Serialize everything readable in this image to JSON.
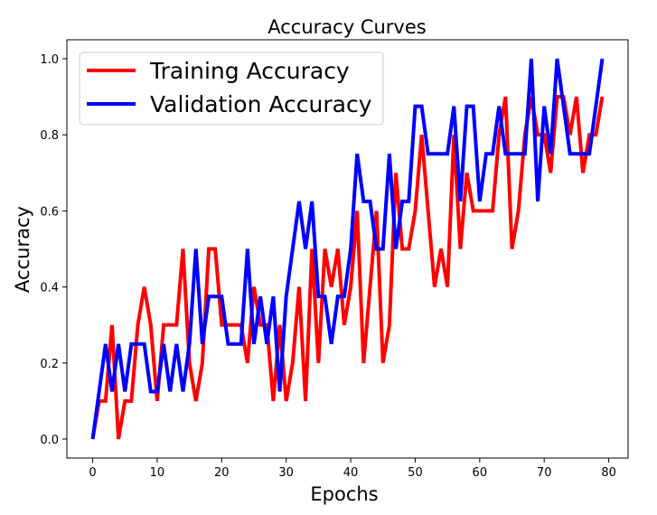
{
  "chart_data": {
    "type": "line",
    "title": "Accuracy Curves",
    "xlabel": "Epochs",
    "ylabel": "Accuracy",
    "xlim": [
      -4,
      83
    ],
    "ylim": [
      -0.05,
      1.05
    ],
    "xticks": [
      0,
      10,
      20,
      30,
      40,
      50,
      60,
      70,
      80
    ],
    "yticks": [
      0.0,
      0.2,
      0.4,
      0.6,
      0.8,
      1.0
    ],
    "grid": false,
    "legend_position": "top-left",
    "x": [
      0,
      1,
      2,
      3,
      4,
      5,
      6,
      7,
      8,
      9,
      10,
      11,
      12,
      13,
      14,
      15,
      16,
      17,
      18,
      19,
      20,
      21,
      22,
      23,
      24,
      25,
      26,
      27,
      28,
      29,
      30,
      31,
      32,
      33,
      34,
      35,
      36,
      37,
      38,
      39,
      40,
      41,
      42,
      43,
      44,
      45,
      46,
      47,
      48,
      49,
      50,
      51,
      52,
      53,
      54,
      55,
      56,
      57,
      58,
      59,
      60,
      61,
      62,
      63,
      64,
      65,
      66,
      67,
      68,
      69,
      70,
      71,
      72,
      73,
      74,
      75,
      76,
      77,
      78,
      79
    ],
    "series": [
      {
        "name": "Training Accuracy",
        "color": "#ff0000",
        "values": [
          0.0,
          0.1,
          0.1,
          0.3,
          0.0,
          0.1,
          0.1,
          0.3,
          0.4,
          0.3,
          0.1,
          0.3,
          0.3,
          0.3,
          0.5,
          0.2,
          0.1,
          0.2,
          0.5,
          0.5,
          0.3,
          0.3,
          0.3,
          0.3,
          0.2,
          0.4,
          0.3,
          0.3,
          0.1,
          0.3,
          0.1,
          0.2,
          0.4,
          0.1,
          0.5,
          0.2,
          0.5,
          0.4,
          0.5,
          0.3,
          0.4,
          0.6,
          0.2,
          0.4,
          0.6,
          0.2,
          0.3,
          0.7,
          0.5,
          0.5,
          0.6,
          0.8,
          0.6,
          0.4,
          0.5,
          0.4,
          0.8,
          0.5,
          0.7,
          0.6,
          0.6,
          0.6,
          0.6,
          0.8,
          0.9,
          0.5,
          0.6,
          0.8,
          0.9,
          0.8,
          0.8,
          0.7,
          0.9,
          0.9,
          0.8,
          0.9,
          0.7,
          0.8,
          0.8,
          0.9
        ]
      },
      {
        "name": "Validation Accuracy",
        "color": "#0000ff",
        "values": [
          0.0,
          0.125,
          0.25,
          0.125,
          0.25,
          0.125,
          0.25,
          0.25,
          0.25,
          0.125,
          0.125,
          0.25,
          0.125,
          0.25,
          0.125,
          0.25,
          0.5,
          0.25,
          0.375,
          0.375,
          0.375,
          0.25,
          0.25,
          0.25,
          0.5,
          0.25,
          0.375,
          0.25,
          0.375,
          0.125,
          0.375,
          0.5,
          0.625,
          0.5,
          0.625,
          0.375,
          0.375,
          0.25,
          0.375,
          0.375,
          0.5,
          0.75,
          0.625,
          0.625,
          0.5,
          0.5,
          0.75,
          0.5,
          0.625,
          0.625,
          0.875,
          0.875,
          0.75,
          0.75,
          0.75,
          0.75,
          0.875,
          0.625,
          0.875,
          0.875,
          0.625,
          0.75,
          0.75,
          0.875,
          0.75,
          0.75,
          0.75,
          0.75,
          1.0,
          0.625,
          0.875,
          0.75,
          1.0,
          0.875,
          0.75,
          0.75,
          0.75,
          0.75,
          0.875,
          1.0
        ]
      }
    ]
  }
}
